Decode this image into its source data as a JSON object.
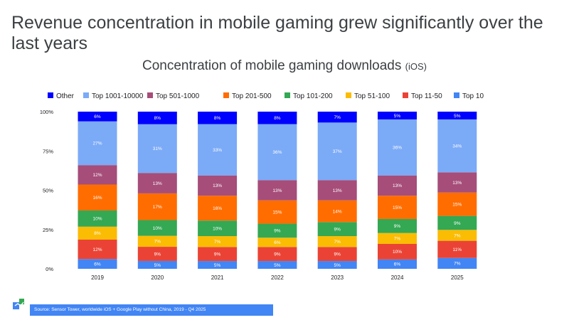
{
  "title": "Revenue concentration in mobile gaming grew significantly over the last years",
  "chart_heading": {
    "main": "Concentration of mobile gaming downloads",
    "sub": "(iOS)"
  },
  "source": "Source: Sensor Tower, worldwide iOS + Google Play without China, 2019 - Q4 2025",
  "chart_data": {
    "type": "bar",
    "stacked": true,
    "categories": [
      "2019",
      "2020",
      "2021",
      "2022",
      "2023",
      "2024",
      "2025"
    ],
    "y_ticks": [
      "0%",
      "25%",
      "50%",
      "75%",
      "100%"
    ],
    "ylim": [
      0,
      100
    ],
    "legend_position": "top",
    "series": [
      {
        "name": "Top 10",
        "color": "#4285f4",
        "values": [
          6,
          5,
          5,
          5,
          5,
          6,
          7
        ],
        "labels": [
          "6%",
          "5%",
          "5%",
          "5%",
          "5%",
          "6%",
          "7%"
        ]
      },
      {
        "name": "Top 11-50",
        "color": "#ea4335",
        "values": [
          12,
          9,
          9,
          9,
          9,
          10,
          11
        ],
        "labels": [
          "12%",
          "9%",
          "9%",
          "9%",
          "9%",
          "10%",
          "11%"
        ]
      },
      {
        "name": "Top 51-100",
        "color": "#fbbc04",
        "values": [
          8,
          7,
          7,
          6,
          7,
          7,
          7
        ],
        "labels": [
          "8%",
          "7%",
          "7%",
          "6%",
          "7%",
          "7%",
          "7%"
        ]
      },
      {
        "name": "Top 101-200",
        "color": "#34a853",
        "values": [
          10,
          10,
          10,
          9,
          9,
          9,
          9
        ],
        "labels": [
          "10%",
          "10%",
          "10%",
          "9%",
          "9%",
          "9%",
          "9%"
        ]
      },
      {
        "name": "Top 201-500",
        "color": "#ff6d01",
        "values": [
          16,
          17,
          16,
          15,
          14,
          15,
          15
        ],
        "labels": [
          "16%",
          "17%",
          "16%",
          "15%",
          "14%",
          "15%",
          "15%"
        ]
      },
      {
        "name": "Top 501-1000",
        "color": "#a64d79",
        "values": [
          12,
          13,
          13,
          13,
          13,
          13,
          13
        ],
        "labels": [
          "12%",
          "13%",
          "13%",
          "13%",
          "13%",
          "13%",
          "13%"
        ]
      },
      {
        "name": "Top 1001-10000",
        "color": "#7baaf7",
        "values": [
          27,
          31,
          33,
          36,
          37,
          36,
          34
        ],
        "labels": [
          "27%",
          "31%",
          "33%",
          "36%",
          "37%",
          "36%",
          "34%"
        ]
      },
      {
        "name": "Other",
        "color": "#0000ff",
        "values": [
          6,
          8,
          8,
          8,
          7,
          5,
          5
        ],
        "labels": [
          "6%",
          "8%",
          "8%",
          "8%",
          "7%",
          "5%",
          "5%"
        ]
      }
    ]
  }
}
